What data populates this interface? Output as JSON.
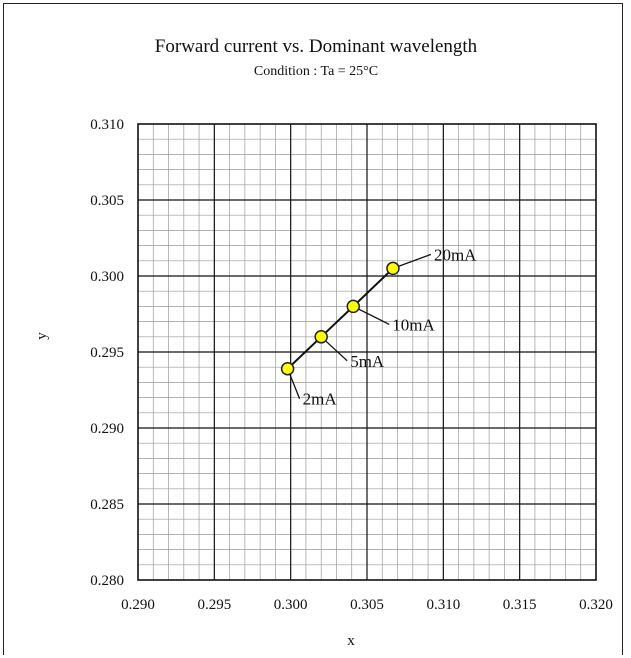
{
  "chart_data": {
    "type": "scatter",
    "title": "Forward current vs. Dominant wavelength",
    "subtitle": "Condition : Ta = 25°C",
    "xlabel": "x",
    "ylabel": "y",
    "xlim": [
      0.29,
      0.32
    ],
    "ylim": [
      0.28,
      0.31
    ],
    "x_ticks": [
      "0.290",
      "0.295",
      "0.300",
      "0.305",
      "0.310",
      "0.315",
      "0.320"
    ],
    "y_ticks": [
      "0.280",
      "0.285",
      "0.290",
      "0.295",
      "0.300",
      "0.305",
      "0.310"
    ],
    "x_major_step": 0.005,
    "y_major_step": 0.005,
    "minor_per_major": 5,
    "grid": true,
    "series": [
      {
        "points": [
          {
            "x": 0.2998,
            "y": 0.2939,
            "label": "2mA"
          },
          {
            "x": 0.302,
            "y": 0.296,
            "label": "5mA"
          },
          {
            "x": 0.3041,
            "y": 0.298,
            "label": "10mA"
          },
          {
            "x": 0.3067,
            "y": 0.3005,
            "label": "20mA"
          }
        ]
      }
    ],
    "colors": {
      "marker_fill": "#ffff00",
      "marker_stroke": "#222222",
      "line": "#111111",
      "major_grid": "#111111",
      "minor_grid": "#9a9a9a"
    }
  }
}
